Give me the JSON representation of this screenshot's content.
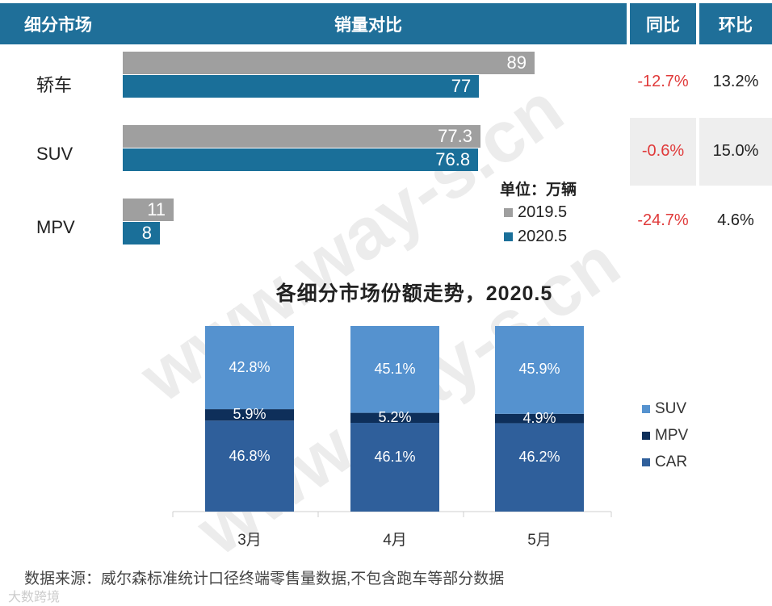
{
  "header": {
    "col1": "细分市场",
    "col2": "销量对比",
    "col3": "同比",
    "col4": "环比"
  },
  "rows": [
    {
      "name": "轿车",
      "v2019": "89",
      "v2020": "77",
      "yoy": "-12.7%",
      "mom": "13.2%"
    },
    {
      "name": "SUV",
      "v2019": "77.3",
      "v2020": "76.8",
      "yoy": "-0.6%",
      "mom": "15.0%"
    },
    {
      "name": "MPV",
      "v2019": "11",
      "v2020": "8",
      "yoy": "-24.7%",
      "mom": "4.6%"
    }
  ],
  "legend1": {
    "unit": "单位：万辆",
    "y2019": "2019.5",
    "y2020": "2020.5"
  },
  "chart2_title": "各细分市场份额走势，2020.5",
  "months": [
    "3月",
    "4月",
    "5月"
  ],
  "legend2": [
    "SUV",
    "MPV",
    "CAR"
  ],
  "source": "数据来源：威尔森标准统计口径终端零售量数据,不包含跑车等部分数据",
  "brand": "大数跨境",
  "watermark": "www.way-s.cn",
  "colors": {
    "header": "#1f6f99",
    "y2019": "#9f9f9f",
    "y2020": "#1a6f99",
    "suv": "#5592cf",
    "mpv": "#0e2f5a",
    "car": "#2f5f9b",
    "negative": "#e03a3a"
  },
  "chart_data": [
    {
      "type": "bar",
      "categories": [
        "轿车",
        "SUV",
        "MPV"
      ],
      "series": [
        {
          "name": "2019.5",
          "values": [
            89,
            77.3,
            11
          ]
        },
        {
          "name": "2020.5",
          "values": [
            77,
            76.8,
            8
          ]
        }
      ],
      "orientation": "horizontal",
      "unit": "万辆"
    },
    {
      "type": "bar",
      "stacked": true,
      "title": "各细分市场份额走势，2020.5",
      "categories": [
        "3月",
        "4月",
        "5月"
      ],
      "series": [
        {
          "name": "CAR",
          "values": [
            46.8,
            46.1,
            46.2
          ]
        },
        {
          "name": "MPV",
          "values": [
            5.9,
            5.2,
            4.9
          ]
        },
        {
          "name": "SUV",
          "values": [
            42.8,
            45.1,
            45.9
          ]
        }
      ],
      "labels": {
        "CAR": [
          "46.8%",
          "46.1%",
          "46.2%"
        ],
        "MPV": [
          "5.9%",
          "5.2%",
          "4.9%"
        ],
        "SUV": [
          "42.8%",
          "45.1%",
          "45.9%"
        ]
      },
      "legend": "right"
    }
  ]
}
